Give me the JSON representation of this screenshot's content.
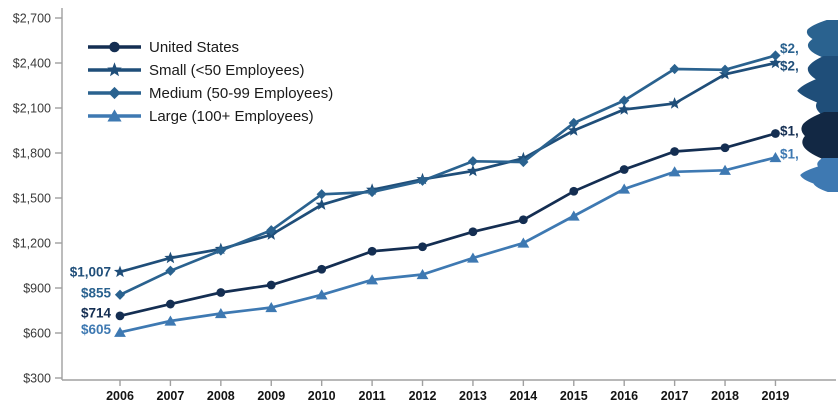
{
  "chart_data": {
    "type": "line",
    "title": "",
    "x": [
      2006,
      2007,
      2008,
      2009,
      2010,
      2011,
      2012,
      2013,
      2014,
      2015,
      2016,
      2017,
      2018,
      2019
    ],
    "x_ticks": [
      "2006",
      "2007",
      "2008",
      "2009",
      "2010",
      "2011",
      "2012",
      "2013",
      "2014",
      "2015",
      "2016",
      "2017",
      "2018",
      "2019"
    ],
    "y_axis": {
      "min": 300,
      "max": 2700,
      "step": 300,
      "prefix": "$"
    },
    "y_ticks": [
      "$300",
      "$600",
      "$900",
      "$1,200",
      "$1,500",
      "$1,800",
      "$2,100",
      "$2,400",
      "$2,700"
    ],
    "grid": false,
    "legend_position": "top-left",
    "axis_color": "#a0a0a0",
    "series": [
      {
        "key": "us",
        "name": "United States",
        "marker": "circle",
        "color": "#142E52",
        "values": [
          714,
          793,
          870,
          920,
          1025,
          1145,
          1175,
          1275,
          1355,
          1545,
          1690,
          1810,
          1835,
          1930
        ],
        "start_label": "$714",
        "end_label_fragment": "$1,"
      },
      {
        "key": "small",
        "name": "Small (<50 Employees)",
        "marker": "star",
        "color": "#1F4E79",
        "values": [
          1007,
          1100,
          1160,
          1255,
          1455,
          1555,
          1625,
          1680,
          1765,
          1950,
          2090,
          2130,
          2325,
          2400
        ],
        "start_label": "$1,007",
        "end_label_fragment": "$2,"
      },
      {
        "key": "medium",
        "name": "Medium (50-99 Employees)",
        "marker": "diamond",
        "color": "#2A628F",
        "values": [
          855,
          1015,
          1150,
          1285,
          1525,
          1540,
          1615,
          1745,
          1740,
          2000,
          2150,
          2360,
          2355,
          2450
        ],
        "start_label": "$855",
        "end_label_fragment": "$2,"
      },
      {
        "key": "large",
        "name": "Large (100+ Employees)",
        "marker": "triangle",
        "color": "#3E79B2",
        "values": [
          605,
          680,
          730,
          770,
          855,
          955,
          990,
          1100,
          1200,
          1380,
          1560,
          1675,
          1685,
          1770
        ],
        "start_label": "$605",
        "end_label_fragment": "$1,"
      }
    ],
    "legend_entries": [
      "United States",
      "Small (<50 Employees)",
      "Medium (50-99 Employees)",
      "Large (100+ Employees)"
    ],
    "edge_decoration": {
      "description": "cropped blob shapes at right image edge, colored per series",
      "blobs": [
        {
          "series": "medium",
          "color": "#2A628F"
        },
        {
          "series": "small",
          "color": "#1F4E79"
        },
        {
          "series": "us",
          "color": "#122844"
        },
        {
          "series": "large",
          "color": "#3E79B2"
        }
      ]
    }
  }
}
